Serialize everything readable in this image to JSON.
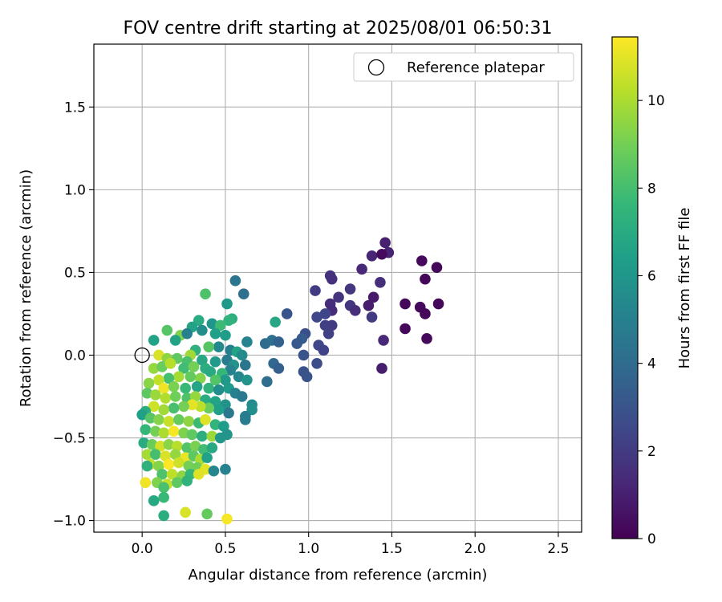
{
  "chart_data": {
    "type": "scatter",
    "title": "FOV centre drift starting at 2025/08/01 06:50:31",
    "xlabel": "Angular distance from reference (arcmin)",
    "ylabel": "Rotation from reference (arcmin)",
    "xlim": [
      -0.29,
      2.64
    ],
    "ylim": [
      -1.07,
      1.88
    ],
    "xticks": [
      0.0,
      0.5,
      1.0,
      1.5,
      2.0,
      2.5
    ],
    "xtick_labels": [
      "0.0",
      "0.5",
      "1.0",
      "1.5",
      "2.0",
      "2.5"
    ],
    "yticks": [
      -1.0,
      -0.5,
      0.0,
      0.5,
      1.0,
      1.5
    ],
    "ytick_labels": [
      "−1.0",
      "−0.5",
      "0.0",
      "0.5",
      "1.0",
      "1.5"
    ],
    "grid": true,
    "legend": {
      "placement": "top-right",
      "entries": [
        {
          "label": "Reference platepar",
          "marker": "open-circle",
          "x": 0.0,
          "y": 0.0
        }
      ]
    },
    "colorbar": {
      "label": "Hours from first FF file",
      "min": 0,
      "max": 11.45,
      "ticks": [
        0,
        2,
        4,
        6,
        8,
        10
      ],
      "tick_labels": [
        "0",
        "2",
        "4",
        "6",
        "8",
        "10"
      ],
      "colormap": "viridis",
      "colors": [
        "#440154",
        "#482878",
        "#3e4989",
        "#31688e",
        "#26828e",
        "#1f9e89",
        "#35b779",
        "#6ece58",
        "#b5de2b",
        "#fde725"
      ]
    },
    "points": [
      {
        "x": 1.46,
        "y": 0.68,
        "h": 1.0
      },
      {
        "x": 1.48,
        "y": 0.62,
        "h": 1.1
      },
      {
        "x": 1.38,
        "y": 0.6,
        "h": 1.2
      },
      {
        "x": 1.44,
        "y": 0.61,
        "h": 0.3
      },
      {
        "x": 1.68,
        "y": 0.57,
        "h": 0.3
      },
      {
        "x": 1.77,
        "y": 0.53,
        "h": 0.2
      },
      {
        "x": 1.32,
        "y": 0.52,
        "h": 1.3
      },
      {
        "x": 1.7,
        "y": 0.46,
        "h": 0.2
      },
      {
        "x": 1.13,
        "y": 0.48,
        "h": 1.7
      },
      {
        "x": 1.14,
        "y": 0.46,
        "h": 1.6
      },
      {
        "x": 1.43,
        "y": 0.44,
        "h": 1.5
      },
      {
        "x": 1.25,
        "y": 0.4,
        "h": 1.8
      },
      {
        "x": 1.04,
        "y": 0.39,
        "h": 2.0
      },
      {
        "x": 1.18,
        "y": 0.35,
        "h": 1.7
      },
      {
        "x": 1.39,
        "y": 0.35,
        "h": 0.8
      },
      {
        "x": 1.36,
        "y": 0.3,
        "h": 0.9
      },
      {
        "x": 1.58,
        "y": 0.31,
        "h": 0.2
      },
      {
        "x": 1.78,
        "y": 0.31,
        "h": 0.2
      },
      {
        "x": 1.13,
        "y": 0.31,
        "h": 1.5
      },
      {
        "x": 1.25,
        "y": 0.3,
        "h": 1.9
      },
      {
        "x": 1.67,
        "y": 0.29,
        "h": 0.3
      },
      {
        "x": 1.14,
        "y": 0.27,
        "h": 1.4
      },
      {
        "x": 1.28,
        "y": 0.27,
        "h": 1.5
      },
      {
        "x": 1.7,
        "y": 0.25,
        "h": 0.2
      },
      {
        "x": 1.1,
        "y": 0.25,
        "h": 2.4
      },
      {
        "x": 1.05,
        "y": 0.23,
        "h": 2.5
      },
      {
        "x": 1.38,
        "y": 0.23,
        "h": 2.0
      },
      {
        "x": 0.87,
        "y": 0.25,
        "h": 3.0
      },
      {
        "x": 1.14,
        "y": 0.18,
        "h": 2.0
      },
      {
        "x": 1.1,
        "y": 0.18,
        "h": 2.2
      },
      {
        "x": 1.58,
        "y": 0.16,
        "h": 0.2
      },
      {
        "x": 1.12,
        "y": 0.13,
        "h": 2.2
      },
      {
        "x": 0.98,
        "y": 0.13,
        "h": 2.8
      },
      {
        "x": 0.96,
        "y": 0.1,
        "h": 3.3
      },
      {
        "x": 1.71,
        "y": 0.1,
        "h": 0.3
      },
      {
        "x": 1.45,
        "y": 0.09,
        "h": 1.3
      },
      {
        "x": 0.93,
        "y": 0.07,
        "h": 3.2
      },
      {
        "x": 1.06,
        "y": 0.06,
        "h": 2.5
      },
      {
        "x": 1.09,
        "y": 0.03,
        "h": 2.3
      },
      {
        "x": 0.97,
        "y": 0.0,
        "h": 3.0
      },
      {
        "x": 1.05,
        "y": -0.05,
        "h": 2.7
      },
      {
        "x": 0.97,
        "y": -0.1,
        "h": 2.9
      },
      {
        "x": 0.99,
        "y": -0.13,
        "h": 3.0
      },
      {
        "x": 1.44,
        "y": -0.08,
        "h": 0.9
      },
      {
        "x": 0.74,
        "y": 0.07,
        "h": 4.0
      },
      {
        "x": 0.78,
        "y": 0.09,
        "h": 4.2
      },
      {
        "x": 0.82,
        "y": 0.08,
        "h": 3.6
      },
      {
        "x": 0.79,
        "y": -0.05,
        "h": 3.8
      },
      {
        "x": 0.82,
        "y": -0.08,
        "h": 3.5
      },
      {
        "x": 0.75,
        "y": -0.16,
        "h": 4.1
      },
      {
        "x": 0.8,
        "y": 0.2,
        "h": 6.8
      },
      {
        "x": 0.56,
        "y": 0.45,
        "h": 4.5
      },
      {
        "x": 0.61,
        "y": 0.37,
        "h": 4.2
      },
      {
        "x": 0.38,
        "y": 0.37,
        "h": 8.2
      },
      {
        "x": 0.51,
        "y": 0.31,
        "h": 6.1
      },
      {
        "x": 0.54,
        "y": 0.22,
        "h": 7.2
      },
      {
        "x": 0.52,
        "y": 0.21,
        "h": 7.4
      },
      {
        "x": 0.34,
        "y": 0.21,
        "h": 7.0
      },
      {
        "x": 0.42,
        "y": 0.19,
        "h": 6.0
      },
      {
        "x": 0.47,
        "y": 0.18,
        "h": 7.8
      },
      {
        "x": 0.3,
        "y": 0.17,
        "h": 6.6
      },
      {
        "x": 0.36,
        "y": 0.15,
        "h": 5.6
      },
      {
        "x": 0.44,
        "y": 0.13,
        "h": 6.4
      },
      {
        "x": 0.15,
        "y": 0.15,
        "h": 8.4
      },
      {
        "x": 0.23,
        "y": 0.12,
        "h": 9.2
      },
      {
        "x": 0.27,
        "y": 0.13,
        "h": 5.0
      },
      {
        "x": 0.5,
        "y": 0.12,
        "h": 6.3
      },
      {
        "x": 0.63,
        "y": 0.08,
        "h": 5.2
      },
      {
        "x": 0.46,
        "y": 0.05,
        "h": 5.4
      },
      {
        "x": 0.53,
        "y": 0.03,
        "h": 4.9
      },
      {
        "x": 0.57,
        "y": 0.02,
        "h": 6.6
      },
      {
        "x": 0.6,
        "y": 0.0,
        "h": 5.5
      },
      {
        "x": 0.4,
        "y": 0.05,
        "h": 8.4
      },
      {
        "x": 0.32,
        "y": 0.03,
        "h": 7.3
      },
      {
        "x": 0.07,
        "y": 0.09,
        "h": 6.6
      },
      {
        "x": 0.2,
        "y": 0.09,
        "h": 6.6
      },
      {
        "x": 0.1,
        "y": 0.0,
        "h": 10.8
      },
      {
        "x": 0.15,
        "y": -0.02,
        "h": 9.5
      },
      {
        "x": 0.29,
        "y": 0.0,
        "h": 9.8
      },
      {
        "x": 0.27,
        "y": -0.04,
        "h": 8.1
      },
      {
        "x": 0.21,
        "y": -0.02,
        "h": 8.6
      },
      {
        "x": 0.36,
        "y": -0.03,
        "h": 6.8
      },
      {
        "x": 0.44,
        "y": -0.04,
        "h": 6.2
      },
      {
        "x": 0.51,
        "y": -0.03,
        "h": 4.8
      },
      {
        "x": 0.55,
        "y": -0.06,
        "h": 5.8
      },
      {
        "x": 0.62,
        "y": -0.06,
        "h": 4.5
      },
      {
        "x": 0.53,
        "y": -0.09,
        "h": 5.1
      },
      {
        "x": 0.07,
        "y": -0.08,
        "h": 9.6
      },
      {
        "x": 0.12,
        "y": -0.07,
        "h": 8.8
      },
      {
        "x": 0.17,
        "y": -0.05,
        "h": 10.2
      },
      {
        "x": 0.25,
        "y": -0.08,
        "h": 7.9
      },
      {
        "x": 0.31,
        "y": -0.07,
        "h": 9.0
      },
      {
        "x": 0.38,
        "y": -0.08,
        "h": 7.1
      },
      {
        "x": 0.41,
        "y": -0.1,
        "h": 6.9
      },
      {
        "x": 0.48,
        "y": -0.11,
        "h": 7.6
      },
      {
        "x": 0.58,
        "y": -0.13,
        "h": 5.3
      },
      {
        "x": 0.63,
        "y": -0.15,
        "h": 5.9
      },
      {
        "x": 0.5,
        "y": -0.15,
        "h": 6.1
      },
      {
        "x": 0.44,
        "y": -0.15,
        "h": 8.3
      },
      {
        "x": 0.35,
        "y": -0.14,
        "h": 9.3
      },
      {
        "x": 0.29,
        "y": -0.13,
        "h": 8.7
      },
      {
        "x": 0.22,
        "y": -0.13,
        "h": 9.9
      },
      {
        "x": 0.16,
        "y": -0.14,
        "h": 8.0
      },
      {
        "x": 0.1,
        "y": -0.15,
        "h": 10.4
      },
      {
        "x": 0.04,
        "y": -0.17,
        "h": 9.4
      },
      {
        "x": 0.13,
        "y": -0.2,
        "h": 11.2
      },
      {
        "x": 0.19,
        "y": -0.19,
        "h": 9.1
      },
      {
        "x": 0.26,
        "y": -0.2,
        "h": 7.7
      },
      {
        "x": 0.33,
        "y": -0.19,
        "h": 6.7
      },
      {
        "x": 0.4,
        "y": -0.2,
        "h": 7.4
      },
      {
        "x": 0.46,
        "y": -0.21,
        "h": 5.6
      },
      {
        "x": 0.52,
        "y": -0.2,
        "h": 6.2
      },
      {
        "x": 0.56,
        "y": -0.23,
        "h": 5.0
      },
      {
        "x": 0.6,
        "y": -0.25,
        "h": 4.7
      },
      {
        "x": 0.03,
        "y": -0.23,
        "h": 8.5
      },
      {
        "x": 0.08,
        "y": -0.24,
        "h": 9.7
      },
      {
        "x": 0.14,
        "y": -0.26,
        "h": 10.1
      },
      {
        "x": 0.2,
        "y": -0.25,
        "h": 8.9
      },
      {
        "x": 0.27,
        "y": -0.26,
        "h": 8.2
      },
      {
        "x": 0.32,
        "y": -0.25,
        "h": 9.6
      },
      {
        "x": 0.38,
        "y": -0.27,
        "h": 7.0
      },
      {
        "x": 0.44,
        "y": -0.28,
        "h": 6.6
      },
      {
        "x": 0.5,
        "y": -0.3,
        "h": 5.8
      },
      {
        "x": 0.66,
        "y": -0.3,
        "h": 5.5
      },
      {
        "x": 0.66,
        "y": -0.33,
        "h": 5.7
      },
      {
        "x": 0.62,
        "y": -0.37,
        "h": 4.9
      },
      {
        "x": 0.62,
        "y": -0.39,
        "h": 4.8
      },
      {
        "x": 0.52,
        "y": -0.35,
        "h": 4.6
      },
      {
        "x": 0.46,
        "y": -0.33,
        "h": 6.4
      },
      {
        "x": 0.4,
        "y": -0.32,
        "h": 8.8
      },
      {
        "x": 0.35,
        "y": -0.31,
        "h": 10.3
      },
      {
        "x": 0.3,
        "y": -0.3,
        "h": 11.0
      },
      {
        "x": 0.25,
        "y": -0.31,
        "h": 9.0
      },
      {
        "x": 0.19,
        "y": -0.32,
        "h": 8.1
      },
      {
        "x": 0.13,
        "y": -0.33,
        "h": 9.8
      },
      {
        "x": 0.07,
        "y": -0.31,
        "h": 10.6
      },
      {
        "x": 0.02,
        "y": -0.34,
        "h": 7.1
      },
      {
        "x": 0.0,
        "y": -0.36,
        "h": 6.4
      },
      {
        "x": 0.05,
        "y": -0.38,
        "h": 8.4
      },
      {
        "x": 0.1,
        "y": -0.39,
        "h": 9.3
      },
      {
        "x": 0.16,
        "y": -0.4,
        "h": 10.5
      },
      {
        "x": 0.22,
        "y": -0.39,
        "h": 8.7
      },
      {
        "x": 0.28,
        "y": -0.4,
        "h": 9.5
      },
      {
        "x": 0.34,
        "y": -0.41,
        "h": 7.8
      },
      {
        "x": 0.38,
        "y": -0.39,
        "h": 10.9
      },
      {
        "x": 0.44,
        "y": -0.42,
        "h": 7.5
      },
      {
        "x": 0.49,
        "y": -0.43,
        "h": 6.3
      },
      {
        "x": 0.02,
        "y": -0.45,
        "h": 7.6
      },
      {
        "x": 0.08,
        "y": -0.46,
        "h": 9.0
      },
      {
        "x": 0.13,
        "y": -0.47,
        "h": 10.0
      },
      {
        "x": 0.19,
        "y": -0.46,
        "h": 11.3
      },
      {
        "x": 0.25,
        "y": -0.47,
        "h": 9.2
      },
      {
        "x": 0.3,
        "y": -0.48,
        "h": 8.6
      },
      {
        "x": 0.36,
        "y": -0.49,
        "h": 7.2
      },
      {
        "x": 0.42,
        "y": -0.49,
        "h": 9.7
      },
      {
        "x": 0.47,
        "y": -0.5,
        "h": 6.0
      },
      {
        "x": 0.51,
        "y": -0.48,
        "h": 5.9
      },
      {
        "x": 0.01,
        "y": -0.53,
        "h": 7.0
      },
      {
        "x": 0.06,
        "y": -0.54,
        "h": 8.8
      },
      {
        "x": 0.11,
        "y": -0.55,
        "h": 10.7
      },
      {
        "x": 0.16,
        "y": -0.54,
        "h": 9.4
      },
      {
        "x": 0.21,
        "y": -0.55,
        "h": 10.2
      },
      {
        "x": 0.27,
        "y": -0.56,
        "h": 8.3
      },
      {
        "x": 0.32,
        "y": -0.55,
        "h": 9.1
      },
      {
        "x": 0.37,
        "y": -0.57,
        "h": 7.9
      },
      {
        "x": 0.42,
        "y": -0.56,
        "h": 6.9
      },
      {
        "x": 0.03,
        "y": -0.6,
        "h": 9.9
      },
      {
        "x": 0.08,
        "y": -0.6,
        "h": 8.0
      },
      {
        "x": 0.14,
        "y": -0.61,
        "h": 10.8
      },
      {
        "x": 0.2,
        "y": -0.6,
        "h": 9.6
      },
      {
        "x": 0.26,
        "y": -0.62,
        "h": 11.1
      },
      {
        "x": 0.31,
        "y": -0.61,
        "h": 8.5
      },
      {
        "x": 0.35,
        "y": -0.63,
        "h": 10.0
      },
      {
        "x": 0.39,
        "y": -0.62,
        "h": 6.5
      },
      {
        "x": 0.05,
        "y": -0.66,
        "h": 10.4
      },
      {
        "x": 0.1,
        "y": -0.67,
        "h": 9.3
      },
      {
        "x": 0.16,
        "y": -0.66,
        "h": 11.4
      },
      {
        "x": 0.22,
        "y": -0.65,
        "h": 10.6
      },
      {
        "x": 0.28,
        "y": -0.67,
        "h": 9.0
      },
      {
        "x": 0.33,
        "y": -0.68,
        "h": 8.9
      },
      {
        "x": 0.38,
        "y": -0.69,
        "h": 11.0
      },
      {
        "x": 0.43,
        "y": -0.7,
        "h": 5.3
      },
      {
        "x": 0.5,
        "y": -0.69,
        "h": 5.1
      },
      {
        "x": 0.03,
        "y": -0.67,
        "h": 7.3
      },
      {
        "x": 0.12,
        "y": -0.72,
        "h": 8.2
      },
      {
        "x": 0.18,
        "y": -0.72,
        "h": 10.3
      },
      {
        "x": 0.24,
        "y": -0.73,
        "h": 9.5
      },
      {
        "x": 0.29,
        "y": -0.72,
        "h": 7.6
      },
      {
        "x": 0.34,
        "y": -0.72,
        "h": 10.9
      },
      {
        "x": 0.09,
        "y": -0.77,
        "h": 9.2
      },
      {
        "x": 0.15,
        "y": -0.78,
        "h": 10.5
      },
      {
        "x": 0.21,
        "y": -0.77,
        "h": 8.6
      },
      {
        "x": 0.27,
        "y": -0.76,
        "h": 7.4
      },
      {
        "x": 0.02,
        "y": -0.77,
        "h": 11.2
      },
      {
        "x": 0.13,
        "y": -0.8,
        "h": 8.1
      },
      {
        "x": 0.07,
        "y": -0.88,
        "h": 6.9
      },
      {
        "x": 0.13,
        "y": -0.86,
        "h": 7.7
      },
      {
        "x": 0.13,
        "y": -0.97,
        "h": 7.1
      },
      {
        "x": 0.26,
        "y": -0.95,
        "h": 10.8
      },
      {
        "x": 0.39,
        "y": -0.96,
        "h": 8.7
      },
      {
        "x": 0.51,
        "y": -0.99,
        "h": 11.3
      }
    ]
  }
}
